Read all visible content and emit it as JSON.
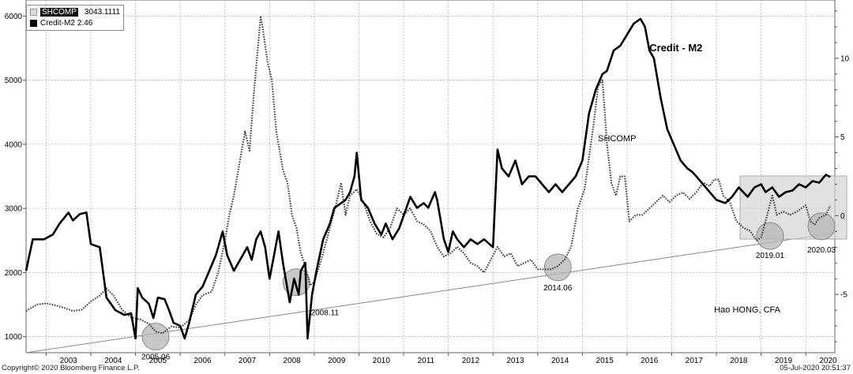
{
  "chart_data": {
    "type": "line",
    "x_ticks": [
      "2003",
      "2004",
      "2005",
      "2006",
      "2007",
      "2008",
      "2009",
      "2010",
      "2011",
      "2012",
      "2013",
      "2014",
      "2015",
      "2016",
      "2017",
      "2018",
      "2019",
      "2020"
    ],
    "left_axis": {
      "ticks": [
        1000,
        2000,
        3000,
        4000,
        5000,
        6000
      ],
      "ylim": [
        750,
        6250
      ]
    },
    "right_axis": {
      "ticks": [
        -5,
        0,
        5,
        10
      ],
      "ylim": [
        -8.7,
        13.7
      ]
    },
    "grid": true,
    "legend_position": "top-left",
    "series": [
      {
        "name": "SHCOMP",
        "legend_value": "3043.1111",
        "axis": "left",
        "style": "dotted",
        "points": [
          [
            2002.55,
            1400
          ],
          [
            2002.8,
            1500
          ],
          [
            2003.0,
            1520
          ],
          [
            2003.2,
            1490
          ],
          [
            2003.4,
            1450
          ],
          [
            2003.6,
            1400
          ],
          [
            2003.8,
            1420
          ],
          [
            2004.0,
            1550
          ],
          [
            2004.2,
            1640
          ],
          [
            2004.35,
            1750
          ],
          [
            2004.5,
            1650
          ],
          [
            2004.7,
            1420
          ],
          [
            2004.9,
            1300
          ],
          [
            2005.1,
            1270
          ],
          [
            2005.3,
            1200
          ],
          [
            2005.45,
            1080
          ],
          [
            2005.6,
            1050
          ],
          [
            2005.8,
            1160
          ],
          [
            2006.0,
            1140
          ],
          [
            2006.2,
            1260
          ],
          [
            2006.35,
            1500
          ],
          [
            2006.5,
            1650
          ],
          [
            2006.7,
            1700
          ],
          [
            2006.85,
            2000
          ],
          [
            2007.0,
            2500
          ],
          [
            2007.1,
            2900
          ],
          [
            2007.2,
            3200
          ],
          [
            2007.35,
            3800
          ],
          [
            2007.45,
            4200
          ],
          [
            2007.55,
            3900
          ],
          [
            2007.65,
            4800
          ],
          [
            2007.75,
            5600
          ],
          [
            2007.8,
            6000
          ],
          [
            2007.85,
            5800
          ],
          [
            2007.95,
            5300
          ],
          [
            2008.05,
            5000
          ],
          [
            2008.15,
            4200
          ],
          [
            2008.3,
            3600
          ],
          [
            2008.4,
            3400
          ],
          [
            2008.5,
            2900
          ],
          [
            2008.6,
            2700
          ],
          [
            2008.7,
            2300
          ],
          [
            2008.8,
            2100
          ],
          [
            2008.9,
            1800
          ],
          [
            2009.0,
            1850
          ],
          [
            2009.2,
            2300
          ],
          [
            2009.35,
            2700
          ],
          [
            2009.5,
            3100
          ],
          [
            2009.6,
            3400
          ],
          [
            2009.7,
            2900
          ],
          [
            2009.8,
            3200
          ],
          [
            2009.95,
            3300
          ],
          [
            2010.1,
            3100
          ],
          [
            2010.25,
            2800
          ],
          [
            2010.4,
            2600
          ],
          [
            2010.55,
            2550
          ],
          [
            2010.7,
            2700
          ],
          [
            2010.85,
            3000
          ],
          [
            2011.0,
            2900
          ],
          [
            2011.15,
            3000
          ],
          [
            2011.3,
            2800
          ],
          [
            2011.45,
            2750
          ],
          [
            2011.6,
            2650
          ],
          [
            2011.75,
            2400
          ],
          [
            2011.9,
            2250
          ],
          [
            2012.05,
            2300
          ],
          [
            2012.2,
            2400
          ],
          [
            2012.35,
            2300
          ],
          [
            2012.5,
            2150
          ],
          [
            2012.65,
            2100
          ],
          [
            2012.8,
            2000
          ],
          [
            2012.95,
            2200
          ],
          [
            2013.1,
            2400
          ],
          [
            2013.25,
            2250
          ],
          [
            2013.4,
            2300
          ],
          [
            2013.55,
            2100
          ],
          [
            2013.7,
            2150
          ],
          [
            2013.85,
            2200
          ],
          [
            2014.0,
            2050
          ],
          [
            2014.15,
            2050
          ],
          [
            2014.3,
            2050
          ],
          [
            2014.45,
            2100
          ],
          [
            2014.6,
            2200
          ],
          [
            2014.75,
            2400
          ],
          [
            2014.9,
            3000
          ],
          [
            2015.05,
            3300
          ],
          [
            2015.15,
            3800
          ],
          [
            2015.25,
            4300
          ],
          [
            2015.35,
            4900
          ],
          [
            2015.45,
            5000
          ],
          [
            2015.55,
            4000
          ],
          [
            2015.65,
            3400
          ],
          [
            2015.75,
            3200
          ],
          [
            2015.85,
            3500
          ],
          [
            2015.95,
            3500
          ],
          [
            2016.05,
            2800
          ],
          [
            2016.2,
            2900
          ],
          [
            2016.35,
            2900
          ],
          [
            2016.5,
            3000
          ],
          [
            2016.65,
            3100
          ],
          [
            2016.8,
            3200
          ],
          [
            2016.95,
            3100
          ],
          [
            2017.1,
            3200
          ],
          [
            2017.25,
            3250
          ],
          [
            2017.4,
            3150
          ],
          [
            2017.55,
            3250
          ],
          [
            2017.7,
            3400
          ],
          [
            2017.85,
            3350
          ],
          [
            2017.95,
            3450
          ],
          [
            2018.05,
            3450
          ],
          [
            2018.15,
            3200
          ],
          [
            2018.3,
            3100
          ],
          [
            2018.45,
            2800
          ],
          [
            2018.6,
            2700
          ],
          [
            2018.75,
            2650
          ],
          [
            2018.9,
            2500
          ],
          [
            2019.0,
            2550
          ],
          [
            2019.1,
            2800
          ],
          [
            2019.25,
            3200
          ],
          [
            2019.35,
            2900
          ],
          [
            2019.5,
            2950
          ],
          [
            2019.65,
            2900
          ],
          [
            2019.8,
            2950
          ],
          [
            2019.9,
            3000
          ],
          [
            2020.0,
            3050
          ],
          [
            2020.1,
            2800
          ],
          [
            2020.2,
            2750
          ],
          [
            2020.3,
            2850
          ],
          [
            2020.45,
            2900
          ],
          [
            2020.55,
            3043
          ]
        ]
      },
      {
        "name": "Credit-M2",
        "legend_value": "2.46",
        "axis": "right",
        "style": "solid",
        "points": [
          [
            2002.55,
            -3.5
          ],
          [
            2002.7,
            -1.5
          ],
          [
            2002.95,
            -1.5
          ],
          [
            2003.15,
            -1.2
          ],
          [
            2003.3,
            -0.5
          ],
          [
            2003.5,
            0.2
          ],
          [
            2003.6,
            -0.3
          ],
          [
            2003.75,
            0.1
          ],
          [
            2003.9,
            0.2
          ],
          [
            2004.0,
            -1.8
          ],
          [
            2004.2,
            -2.0
          ],
          [
            2004.35,
            -5.2
          ],
          [
            2004.55,
            -6.0
          ],
          [
            2004.75,
            -6.3
          ],
          [
            2004.9,
            -6.2
          ],
          [
            2005.0,
            -7.8
          ],
          [
            2005.05,
            -4.6
          ],
          [
            2005.15,
            -5.2
          ],
          [
            2005.3,
            -5.6
          ],
          [
            2005.4,
            -6.5
          ],
          [
            2005.5,
            -5.2
          ],
          [
            2005.65,
            -5.3
          ],
          [
            2005.75,
            -6.0
          ],
          [
            2005.85,
            -6.8
          ],
          [
            2006.0,
            -7.0
          ],
          [
            2006.1,
            -7.8
          ],
          [
            2006.2,
            -6.8
          ],
          [
            2006.35,
            -5.0
          ],
          [
            2006.5,
            -4.5
          ],
          [
            2006.65,
            -3.5
          ],
          [
            2006.8,
            -2.5
          ],
          [
            2006.95,
            -1.0
          ],
          [
            2007.05,
            -2.5
          ],
          [
            2007.2,
            -3.5
          ],
          [
            2007.4,
            -2.5
          ],
          [
            2007.5,
            -2.0
          ],
          [
            2007.6,
            -2.8
          ],
          [
            2007.7,
            -1.5
          ],
          [
            2007.8,
            -1.0
          ],
          [
            2007.9,
            -2.0
          ],
          [
            2008.0,
            -4.0
          ],
          [
            2008.1,
            -2.5
          ],
          [
            2008.2,
            -1.0
          ],
          [
            2008.3,
            -3.0
          ],
          [
            2008.45,
            -5.5
          ],
          [
            2008.55,
            -4.0
          ],
          [
            2008.65,
            -5.0
          ],
          [
            2008.7,
            -3.5
          ],
          [
            2008.8,
            -3.0
          ],
          [
            2008.85,
            -7.8
          ],
          [
            2008.95,
            -5.0
          ],
          [
            2009.05,
            -3.5
          ],
          [
            2009.2,
            -1.5
          ],
          [
            2009.35,
            -0.5
          ],
          [
            2009.45,
            0.5
          ],
          [
            2009.6,
            0.8
          ],
          [
            2009.7,
            1.0
          ],
          [
            2009.8,
            1.5
          ],
          [
            2009.9,
            2.5
          ],
          [
            2009.95,
            4.0
          ],
          [
            2010.05,
            1.0
          ],
          [
            2010.2,
            0.5
          ],
          [
            2010.35,
            -0.5
          ],
          [
            2010.5,
            -1.2
          ],
          [
            2010.6,
            -0.5
          ],
          [
            2010.75,
            -1.5
          ],
          [
            2010.9,
            -0.8
          ],
          [
            2011.0,
            0.0
          ],
          [
            2011.15,
            1.2
          ],
          [
            2011.3,
            0.5
          ],
          [
            2011.45,
            0.8
          ],
          [
            2011.55,
            0.5
          ],
          [
            2011.7,
            1.5
          ],
          [
            2011.75,
            1.0
          ],
          [
            2011.9,
            -1.5
          ],
          [
            2012.0,
            -2.3
          ],
          [
            2012.1,
            -1.0
          ],
          [
            2012.2,
            -1.5
          ],
          [
            2012.35,
            -2.0
          ],
          [
            2012.5,
            -1.5
          ],
          [
            2012.65,
            -1.8
          ],
          [
            2012.8,
            -1.5
          ],
          [
            2013.0,
            -2.0
          ],
          [
            2013.1,
            4.2
          ],
          [
            2013.2,
            3.0
          ],
          [
            2013.35,
            2.5
          ],
          [
            2013.5,
            3.5
          ],
          [
            2013.65,
            2.0
          ],
          [
            2013.8,
            2.5
          ],
          [
            2013.95,
            2.5
          ],
          [
            2014.1,
            2.0
          ],
          [
            2014.25,
            1.5
          ],
          [
            2014.4,
            2.0
          ],
          [
            2014.55,
            1.5
          ],
          [
            2014.7,
            2.0
          ],
          [
            2014.85,
            2.5
          ],
          [
            2015.0,
            3.5
          ],
          [
            2015.15,
            6.5
          ],
          [
            2015.3,
            8.0
          ],
          [
            2015.45,
            9.0
          ],
          [
            2015.55,
            9.2
          ],
          [
            2015.7,
            10.5
          ],
          [
            2015.85,
            10.8
          ],
          [
            2016.0,
            11.5
          ],
          [
            2016.15,
            12.2
          ],
          [
            2016.3,
            12.5
          ],
          [
            2016.4,
            12.0
          ],
          [
            2016.5,
            10.5
          ],
          [
            2016.6,
            10.0
          ],
          [
            2016.75,
            7.5
          ],
          [
            2016.9,
            5.5
          ],
          [
            2017.05,
            4.5
          ],
          [
            2017.2,
            3.5
          ],
          [
            2017.35,
            3.0
          ],
          [
            2017.45,
            2.8
          ],
          [
            2017.55,
            2.5
          ],
          [
            2017.7,
            2.0
          ],
          [
            2017.85,
            1.5
          ],
          [
            2018.0,
            1.0
          ],
          [
            2018.2,
            0.8
          ],
          [
            2018.35,
            1.2
          ],
          [
            2018.5,
            1.8
          ],
          [
            2018.6,
            1.5
          ],
          [
            2018.7,
            1.2
          ],
          [
            2018.85,
            1.8
          ],
          [
            2019.0,
            2.0
          ],
          [
            2019.1,
            1.5
          ],
          [
            2019.25,
            1.8
          ],
          [
            2019.4,
            1.2
          ],
          [
            2019.55,
            1.5
          ],
          [
            2019.7,
            1.6
          ],
          [
            2019.85,
            2.0
          ],
          [
            2020.0,
            1.8
          ],
          [
            2020.15,
            2.2
          ],
          [
            2020.3,
            2.1
          ],
          [
            2020.45,
            2.6
          ],
          [
            2020.55,
            2.46
          ]
        ]
      }
    ],
    "trendline": {
      "points": [
        [
          2002.55,
          750
        ],
        [
          2020.65,
          2620
        ]
      ]
    },
    "highlights": [
      {
        "x": 2005.45,
        "y": 1000,
        "label": "2005.06"
      },
      {
        "x": 2008.6,
        "y": 1850,
        "label": "2008.11"
      },
      {
        "x": 2014.45,
        "y": 2080,
        "label": "2014.06"
      },
      {
        "x": 2019.2,
        "y": 2570,
        "label": "2019.01"
      },
      {
        "x": 2020.35,
        "y": 2720,
        "label": "2020.03"
      }
    ],
    "annotations": [
      {
        "text": "Credit - M2",
        "x": 2016.5,
        "y": 5450,
        "bold": true
      },
      {
        "text": "SHCOMP",
        "x": 2015.35,
        "y": 4050
      },
      {
        "text": "Hao HONG, CFA",
        "x": 2017.95,
        "y": 1380
      }
    ]
  },
  "footer": {
    "copyright": "Copyright© 2020 Bloomberg Finance L.P.",
    "timestamp": "05-Jul-2020 20:51:37"
  }
}
